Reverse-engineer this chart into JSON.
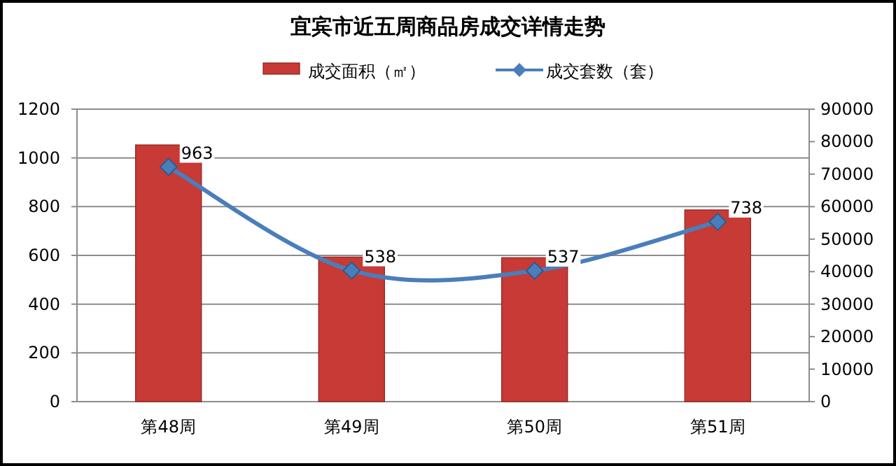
{
  "chart_data": {
    "type": "bar",
    "title": "宜宾市近五周商品房成交详情走势",
    "categories": [
      "第48周",
      "第49周",
      "第50周",
      "第51周"
    ],
    "series": [
      {
        "name": "成交面积（㎡）",
        "axis": "y2",
        "color": "#c83a35",
        "values": [
          79000,
          44500,
          44300,
          59000
        ]
      },
      {
        "name": "成交套数（套）",
        "type": "line",
        "color": "#4a7ebb",
        "values": [
          963,
          538,
          537,
          738
        ],
        "value_labels": [
          "963",
          "538",
          "537",
          "738"
        ]
      }
    ],
    "ylim": [
      0,
      1200
    ],
    "yticks": [
      0,
      200,
      400,
      600,
      800,
      1000,
      1200
    ],
    "y2lim": [
      0,
      90000
    ],
    "y2ticks": [
      0,
      10000,
      20000,
      30000,
      40000,
      50000,
      60000,
      70000,
      80000,
      90000
    ],
    "grid": "y",
    "legend": "top",
    "marker": "diamond"
  }
}
